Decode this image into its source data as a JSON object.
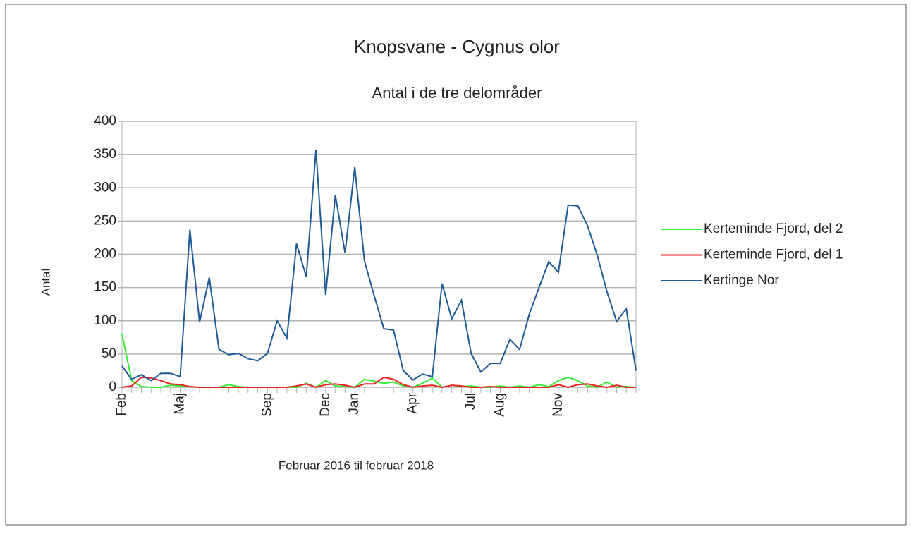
{
  "chart_data": {
    "type": "line",
    "title": "Knopsvane - Cygnus olor",
    "subtitle": "Antal i de tre delområder",
    "y_label": "Antal",
    "x_label": "Februar 2016 til februar 2018",
    "categories": [
      "Feb",
      null,
      null,
      null,
      null,
      null,
      "Maj",
      null,
      null,
      null,
      null,
      null,
      null,
      null,
      null,
      "Sep",
      null,
      null,
      null,
      null,
      null,
      "Dec",
      null,
      null,
      "Jan",
      null,
      null,
      null,
      null,
      null,
      "Apr",
      null,
      null,
      null,
      null,
      null,
      "Jul",
      null,
      null,
      "Aug",
      null,
      null,
      null,
      null,
      null,
      "Nov",
      null,
      null,
      null,
      null,
      null,
      null,
      null,
      null
    ],
    "series": [
      {
        "name": "Kerteminde Fjord, del 2",
        "color": "#33ee33",
        "values": [
          80,
          10,
          1,
          0,
          0,
          3,
          2,
          1,
          0,
          0,
          0,
          4,
          1,
          0,
          0,
          0,
          0,
          0,
          0,
          6,
          0,
          10,
          2,
          1,
          0,
          12,
          9,
          6,
          8,
          2,
          0,
          6,
          14,
          0,
          3,
          1,
          2,
          0,
          0,
          2,
          0,
          2,
          0,
          4,
          1,
          10,
          15,
          10,
          2,
          0,
          8,
          0,
          1,
          0
        ]
      },
      {
        "name": "Kerteminde Fjord, del 1",
        "color": "#ee2222",
        "values": [
          0,
          2,
          15,
          14,
          10,
          5,
          4,
          1,
          0,
          0,
          0,
          0,
          0,
          0,
          0,
          0,
          0,
          0,
          2,
          5,
          0,
          4,
          5,
          3,
          0,
          5,
          5,
          15,
          12,
          4,
          0,
          2,
          3,
          0,
          3,
          2,
          0,
          0,
          1,
          0,
          0,
          0,
          0,
          0,
          0,
          4,
          0,
          4,
          5,
          2,
          0,
          3,
          0,
          0
        ]
      },
      {
        "name": "Kertinge Nor",
        "color": "#1f5a96",
        "values": [
          32,
          12,
          19,
          10,
          21,
          21,
          16,
          237,
          98,
          165,
          57,
          49,
          51,
          43,
          40,
          51,
          100,
          74,
          216,
          166,
          357,
          139,
          289,
          202,
          331,
          190,
          138,
          88,
          86,
          25,
          11,
          20,
          16,
          156,
          103,
          131,
          51,
          23,
          36,
          36,
          72,
          57,
          110,
          150,
          189,
          173,
          274,
          273,
          243,
          199,
          144,
          99,
          118,
          25
        ]
      }
    ],
    "ylim": [
      0,
      400
    ],
    "yticks": [
      0,
      50,
      100,
      150,
      200,
      250,
      300,
      350,
      400
    ],
    "grid": true,
    "legend": "right"
  }
}
